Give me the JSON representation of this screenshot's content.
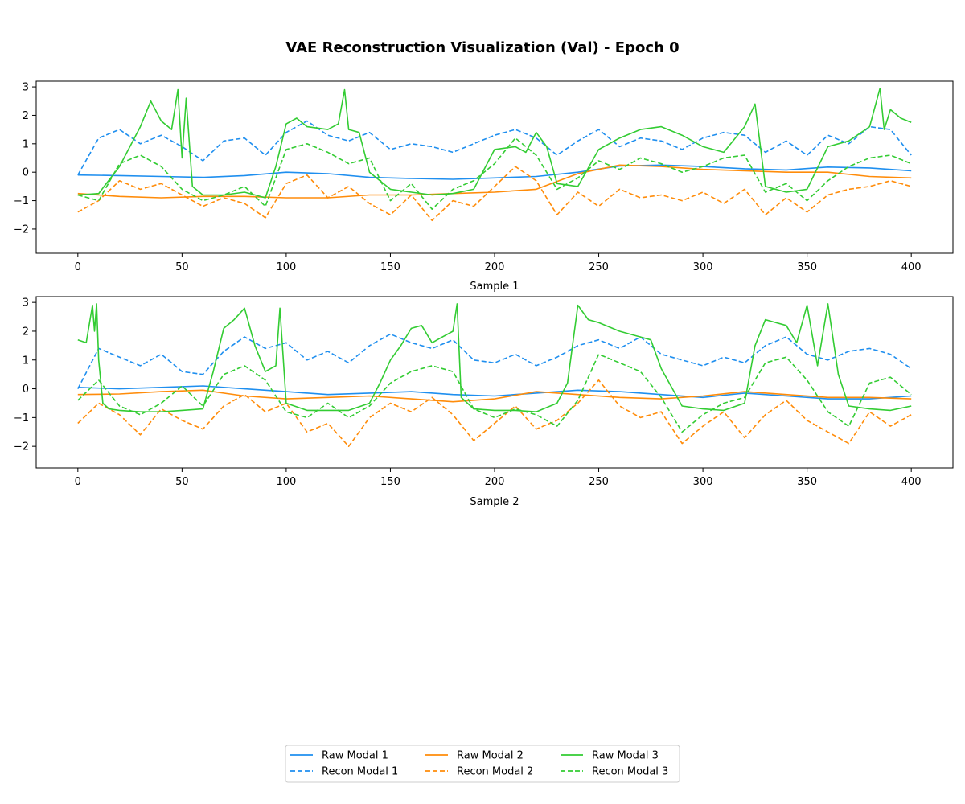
{
  "figure": {
    "title": "VAE Reconstruction Visualization (Val) - Epoch 0"
  },
  "colors": {
    "modal_1": "#1f8fef",
    "modal_2": "#ff8c0a",
    "modal_3": "#33cc33"
  },
  "legend": {
    "placement": "bottom-center",
    "columns": 3,
    "entries": [
      "Raw Modal 1",
      "Recon Modal 1",
      "Raw Modal 2",
      "Recon Modal 2",
      "Raw Modal 3",
      "Recon Modal 3"
    ]
  },
  "chart_data": [
    {
      "type": "line",
      "xlabel": "Sample 1",
      "xlim": [
        -20,
        420
      ],
      "ylim": [
        -2.85,
        3.2
      ],
      "xticks": [
        0,
        50,
        100,
        150,
        200,
        250,
        300,
        350,
        400
      ],
      "yticks": [
        -2,
        -1,
        0,
        1,
        2,
        3
      ],
      "grid": false,
      "series": [
        {
          "name": "Raw Modal 1",
          "modal": 1,
          "style": "solid",
          "x": [
            0,
            20,
            40,
            60,
            80,
            100,
            120,
            140,
            160,
            180,
            200,
            220,
            240,
            260,
            280,
            300,
            320,
            340,
            360,
            380,
            400
          ],
          "y": [
            -0.1,
            -0.12,
            -0.15,
            -0.18,
            -0.12,
            0.0,
            -0.05,
            -0.18,
            -0.22,
            -0.25,
            -0.2,
            -0.15,
            0.0,
            0.22,
            0.25,
            0.2,
            0.12,
            0.08,
            0.18,
            0.15,
            0.05
          ]
        },
        {
          "name": "Recon Modal 1",
          "modal": 1,
          "style": "dashed",
          "x": [
            0,
            10,
            20,
            30,
            40,
            50,
            60,
            70,
            80,
            90,
            100,
            110,
            120,
            130,
            140,
            150,
            160,
            170,
            180,
            190,
            200,
            210,
            220,
            230,
            240,
            250,
            260,
            270,
            280,
            290,
            300,
            310,
            320,
            330,
            340,
            350,
            360,
            370,
            380,
            390,
            400
          ],
          "y": [
            -0.1,
            1.2,
            1.5,
            1.0,
            1.3,
            0.9,
            0.4,
            1.1,
            1.2,
            0.6,
            1.4,
            1.8,
            1.3,
            1.1,
            1.4,
            0.8,
            1.0,
            0.9,
            0.7,
            1.0,
            1.3,
            1.5,
            1.2,
            0.6,
            1.1,
            1.5,
            0.9,
            1.2,
            1.1,
            0.8,
            1.2,
            1.4,
            1.3,
            0.7,
            1.1,
            0.6,
            1.3,
            1.0,
            1.6,
            1.5,
            0.6
          ]
        },
        {
          "name": "Raw Modal 2",
          "modal": 2,
          "style": "solid",
          "x": [
            0,
            20,
            40,
            60,
            80,
            100,
            120,
            140,
            160,
            180,
            200,
            220,
            240,
            260,
            280,
            300,
            320,
            340,
            360,
            380,
            400
          ],
          "y": [
            -0.75,
            -0.85,
            -0.9,
            -0.85,
            -0.85,
            -0.9,
            -0.9,
            -0.8,
            -0.8,
            -0.75,
            -0.7,
            -0.6,
            -0.05,
            0.25,
            0.2,
            0.1,
            0.05,
            0.0,
            0.0,
            -0.15,
            -0.2
          ]
        },
        {
          "name": "Recon Modal 2",
          "modal": 2,
          "style": "dashed",
          "x": [
            0,
            10,
            20,
            30,
            40,
            50,
            60,
            70,
            80,
            90,
            100,
            110,
            120,
            130,
            140,
            150,
            160,
            170,
            180,
            190,
            200,
            210,
            220,
            230,
            240,
            250,
            260,
            270,
            280,
            290,
            300,
            310,
            320,
            330,
            340,
            350,
            360,
            370,
            380,
            390,
            400
          ],
          "y": [
            -1.4,
            -1.0,
            -0.3,
            -0.6,
            -0.4,
            -0.8,
            -1.2,
            -0.9,
            -1.1,
            -1.6,
            -0.4,
            -0.1,
            -0.9,
            -0.5,
            -1.1,
            -1.5,
            -0.8,
            -1.7,
            -1.0,
            -1.2,
            -0.5,
            0.2,
            -0.3,
            -1.5,
            -0.7,
            -1.2,
            -0.6,
            -0.9,
            -0.8,
            -1.0,
            -0.7,
            -1.1,
            -0.6,
            -1.5,
            -0.9,
            -1.4,
            -0.8,
            -0.6,
            -0.5,
            -0.3,
            -0.5
          ]
        },
        {
          "name": "Raw Modal 3",
          "modal": 3,
          "style": "solid",
          "x": [
            0,
            10,
            20,
            30,
            35,
            40,
            45,
            48,
            50,
            52,
            55,
            60,
            70,
            80,
            90,
            95,
            100,
            105,
            110,
            120,
            125,
            128,
            130,
            135,
            140,
            150,
            160,
            170,
            180,
            190,
            200,
            210,
            215,
            220,
            225,
            230,
            240,
            250,
            260,
            270,
            280,
            290,
            300,
            310,
            320,
            325,
            330,
            340,
            350,
            360,
            370,
            380,
            385,
            387,
            390,
            395,
            400
          ],
          "y": [
            -0.8,
            -0.75,
            0.2,
            1.6,
            2.5,
            1.8,
            1.5,
            2.9,
            0.5,
            2.6,
            -0.5,
            -0.8,
            -0.8,
            -0.7,
            -0.9,
            0.2,
            1.7,
            1.9,
            1.6,
            1.5,
            1.7,
            2.9,
            1.5,
            1.4,
            0.0,
            -0.6,
            -0.7,
            -0.8,
            -0.75,
            -0.6,
            0.8,
            0.9,
            0.7,
            1.4,
            0.9,
            -0.4,
            -0.5,
            0.8,
            1.2,
            1.5,
            1.6,
            1.3,
            0.9,
            0.7,
            1.6,
            2.4,
            -0.5,
            -0.7,
            -0.6,
            0.9,
            1.1,
            1.6,
            2.95,
            1.5,
            2.2,
            1.9,
            1.75
          ]
        },
        {
          "name": "Recon Modal 3",
          "modal": 3,
          "style": "dashed",
          "x": [
            0,
            10,
            20,
            30,
            40,
            50,
            60,
            70,
            80,
            90,
            100,
            110,
            120,
            130,
            140,
            150,
            160,
            170,
            180,
            190,
            200,
            210,
            220,
            230,
            240,
            250,
            260,
            270,
            280,
            290,
            300,
            310,
            320,
            330,
            340,
            350,
            360,
            370,
            380,
            390,
            400
          ],
          "y": [
            -0.8,
            -1.0,
            0.3,
            0.6,
            0.2,
            -0.6,
            -1.0,
            -0.8,
            -0.5,
            -1.2,
            0.8,
            1.0,
            0.7,
            0.3,
            0.5,
            -1.0,
            -0.4,
            -1.3,
            -0.6,
            -0.3,
            0.3,
            1.2,
            0.6,
            -0.6,
            -0.2,
            0.4,
            0.1,
            0.5,
            0.3,
            0.0,
            0.2,
            0.5,
            0.6,
            -0.7,
            -0.4,
            -1.0,
            -0.3,
            0.2,
            0.5,
            0.6,
            0.3
          ]
        }
      ]
    },
    {
      "type": "line",
      "xlabel": "Sample 2",
      "xlim": [
        -20,
        420
      ],
      "ylim": [
        -2.75,
        3.2
      ],
      "xticks": [
        0,
        50,
        100,
        150,
        200,
        250,
        300,
        350,
        400
      ],
      "yticks": [
        -2,
        -1,
        0,
        1,
        2,
        3
      ],
      "grid": false,
      "series": [
        {
          "name": "Raw Modal 1",
          "modal": 1,
          "style": "solid",
          "x": [
            0,
            20,
            40,
            60,
            80,
            100,
            120,
            140,
            160,
            180,
            200,
            220,
            240,
            260,
            280,
            300,
            320,
            340,
            360,
            380,
            400
          ],
          "y": [
            0.05,
            0.0,
            0.05,
            0.1,
            0.0,
            -0.1,
            -0.2,
            -0.15,
            -0.1,
            -0.2,
            -0.25,
            -0.15,
            -0.05,
            -0.1,
            -0.2,
            -0.3,
            -0.15,
            -0.25,
            -0.35,
            -0.35,
            -0.25
          ]
        },
        {
          "name": "Recon Modal 1",
          "modal": 1,
          "style": "dashed",
          "x": [
            0,
            10,
            20,
            30,
            40,
            50,
            60,
            70,
            80,
            90,
            100,
            110,
            120,
            130,
            140,
            150,
            160,
            170,
            180,
            190,
            200,
            210,
            220,
            230,
            240,
            250,
            260,
            270,
            280,
            290,
            300,
            310,
            320,
            330,
            340,
            350,
            360,
            370,
            380,
            390,
            400
          ],
          "y": [
            0.0,
            1.4,
            1.1,
            0.8,
            1.2,
            0.6,
            0.5,
            1.3,
            1.8,
            1.4,
            1.6,
            1.0,
            1.3,
            0.9,
            1.5,
            1.9,
            1.6,
            1.4,
            1.7,
            1.0,
            0.9,
            1.2,
            0.8,
            1.1,
            1.5,
            1.7,
            1.4,
            1.8,
            1.2,
            1.0,
            0.8,
            1.1,
            0.9,
            1.5,
            1.8,
            1.2,
            1.0,
            1.3,
            1.4,
            1.2,
            0.7
          ]
        },
        {
          "name": "Raw Modal 2",
          "modal": 2,
          "style": "solid",
          "x": [
            0,
            20,
            40,
            60,
            80,
            100,
            120,
            140,
            160,
            180,
            200,
            220,
            240,
            260,
            280,
            300,
            320,
            340,
            360,
            380,
            400
          ],
          "y": [
            -0.2,
            -0.18,
            -0.1,
            -0.05,
            -0.25,
            -0.35,
            -0.3,
            -0.25,
            -0.35,
            -0.45,
            -0.35,
            -0.1,
            -0.2,
            -0.3,
            -0.35,
            -0.25,
            -0.1,
            -0.2,
            -0.3,
            -0.3,
            -0.35
          ]
        },
        {
          "name": "Recon Modal 2",
          "modal": 2,
          "style": "dashed",
          "x": [
            0,
            10,
            20,
            30,
            40,
            50,
            60,
            70,
            80,
            90,
            100,
            110,
            120,
            130,
            140,
            150,
            160,
            170,
            180,
            190,
            200,
            210,
            220,
            230,
            240,
            250,
            260,
            270,
            280,
            290,
            300,
            310,
            320,
            330,
            340,
            350,
            360,
            370,
            380,
            390,
            400
          ],
          "y": [
            -1.2,
            -0.5,
            -0.9,
            -1.6,
            -0.7,
            -1.1,
            -1.4,
            -0.6,
            -0.2,
            -0.8,
            -0.5,
            -1.5,
            -1.2,
            -2.0,
            -1.0,
            -0.5,
            -0.8,
            -0.3,
            -0.9,
            -1.8,
            -1.2,
            -0.6,
            -1.4,
            -1.1,
            -0.5,
            0.3,
            -0.6,
            -1.0,
            -0.8,
            -1.9,
            -1.3,
            -0.8,
            -1.7,
            -0.9,
            -0.4,
            -1.1,
            -1.5,
            -1.9,
            -0.8,
            -1.3,
            -0.9
          ]
        },
        {
          "name": "Raw Modal 3",
          "modal": 3,
          "style": "solid",
          "x": [
            0,
            4,
            7,
            8,
            9,
            10,
            12,
            15,
            20,
            30,
            40,
            50,
            60,
            65,
            70,
            75,
            80,
            85,
            90,
            95,
            97,
            100,
            110,
            120,
            130,
            140,
            145,
            150,
            155,
            160,
            165,
            170,
            175,
            180,
            182,
            184,
            190,
            200,
            210,
            220,
            230,
            235,
            240,
            245,
            250,
            260,
            270,
            275,
            280,
            290,
            300,
            310,
            320,
            325,
            330,
            340,
            345,
            350,
            355,
            360,
            365,
            370,
            380,
            390,
            400
          ],
          "y": [
            1.7,
            1.6,
            2.9,
            2.0,
            2.95,
            1.0,
            -0.5,
            -0.7,
            -0.75,
            -0.8,
            -0.8,
            -0.75,
            -0.7,
            0.6,
            2.1,
            2.4,
            2.8,
            1.5,
            0.6,
            0.8,
            2.8,
            -0.5,
            -0.75,
            -0.75,
            -0.75,
            -0.5,
            0.2,
            1.0,
            1.5,
            2.1,
            2.2,
            1.6,
            1.8,
            2.0,
            2.95,
            -0.3,
            -0.7,
            -0.75,
            -0.75,
            -0.8,
            -0.5,
            0.2,
            2.9,
            2.4,
            2.3,
            2.0,
            1.8,
            1.7,
            0.7,
            -0.6,
            -0.7,
            -0.75,
            -0.5,
            1.5,
            2.4,
            2.2,
            1.6,
            2.9,
            0.8,
            2.95,
            0.5,
            -0.6,
            -0.7,
            -0.75,
            -0.6
          ]
        },
        {
          "name": "Recon Modal 3",
          "modal": 3,
          "style": "dashed",
          "x": [
            0,
            10,
            20,
            30,
            40,
            50,
            60,
            70,
            80,
            90,
            100,
            110,
            120,
            130,
            140,
            150,
            160,
            170,
            180,
            190,
            200,
            210,
            220,
            230,
            240,
            250,
            260,
            270,
            280,
            290,
            300,
            310,
            320,
            330,
            340,
            350,
            360,
            370,
            380,
            390,
            400
          ],
          "y": [
            -0.4,
            0.3,
            -0.6,
            -0.9,
            -0.5,
            0.1,
            -0.6,
            0.5,
            0.8,
            0.3,
            -0.8,
            -1.0,
            -0.5,
            -1.0,
            -0.6,
            0.2,
            0.6,
            0.8,
            0.6,
            -0.7,
            -1.0,
            -0.7,
            -0.9,
            -1.3,
            -0.4,
            1.2,
            0.9,
            0.6,
            -0.3,
            -1.5,
            -0.9,
            -0.5,
            -0.3,
            0.9,
            1.1,
            0.3,
            -0.8,
            -1.3,
            0.2,
            0.4,
            -0.2
          ]
        }
      ]
    }
  ]
}
